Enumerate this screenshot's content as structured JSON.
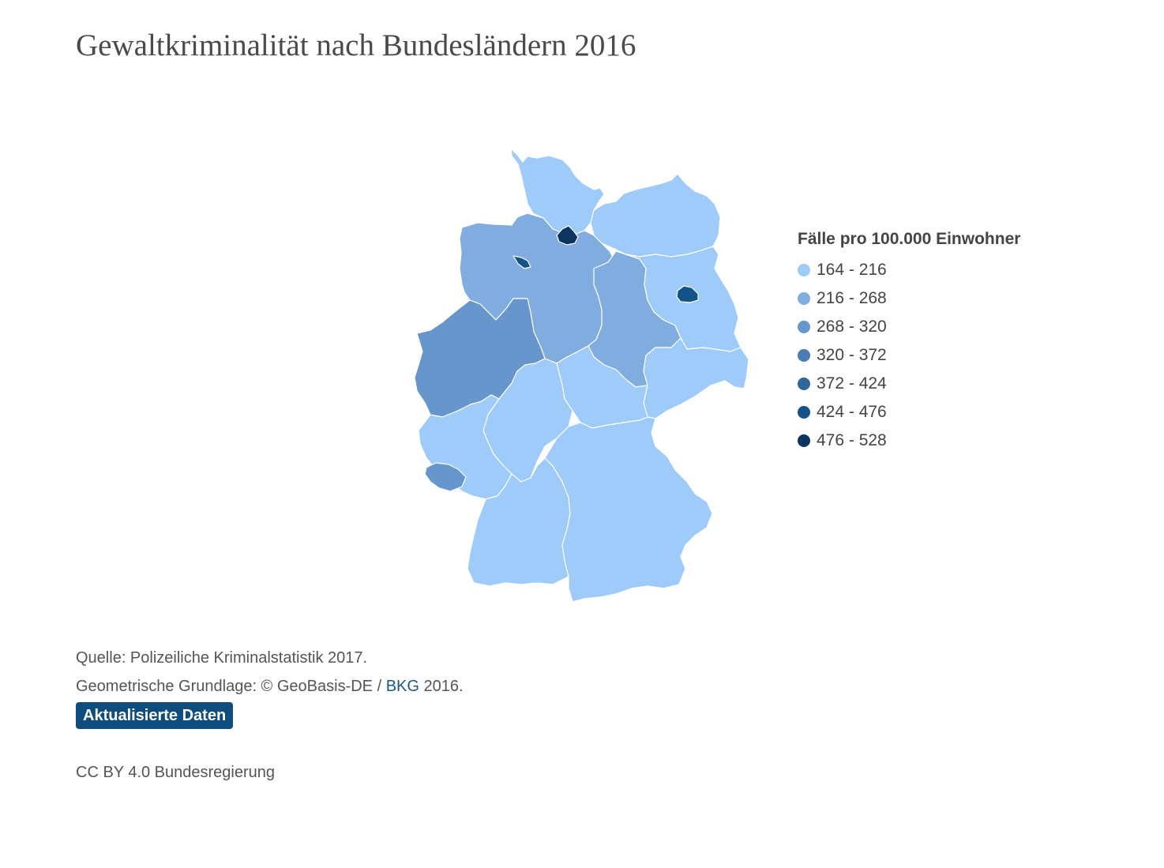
{
  "title": "Gewaltkriminalität nach Bundesländern 2016",
  "map": {
    "legend": {
      "title": "Fälle pro 100.000 Einwohner",
      "classes": [
        {
          "label": "164 - 216",
          "color": "#9ecbfa"
        },
        {
          "label": "216 - 268",
          "color": "#80acdf"
        },
        {
          "label": "268 - 320",
          "color": "#6796cc"
        },
        {
          "label": "320 - 372",
          "color": "#4d7bb4"
        },
        {
          "label": "372 - 424",
          "color": "#2f669b"
        },
        {
          "label": "424 - 476",
          "color": "#12548a"
        },
        {
          "label": "476 - 528",
          "color": "#0a3561"
        }
      ]
    },
    "states": [
      {
        "name": "Schleswig-Holstein",
        "class": 0
      },
      {
        "name": "Hamburg",
        "class": 6
      },
      {
        "name": "Niedersachsen",
        "class": 1
      },
      {
        "name": "Bremen",
        "class": 5
      },
      {
        "name": "Mecklenburg-Vorpommern",
        "class": 0
      },
      {
        "name": "Brandenburg",
        "class": 0
      },
      {
        "name": "Berlin",
        "class": 5
      },
      {
        "name": "Sachsen-Anhalt",
        "class": 1
      },
      {
        "name": "Nordrhein-Westfalen",
        "class": 2
      },
      {
        "name": "Hessen",
        "class": 0
      },
      {
        "name": "Thüringen",
        "class": 0
      },
      {
        "name": "Sachsen",
        "class": 0
      },
      {
        "name": "Rheinland-Pfalz",
        "class": 0
      },
      {
        "name": "Saarland",
        "class": 2
      },
      {
        "name": "Bayern",
        "class": 0
      },
      {
        "name": "Baden-Württemberg",
        "class": 0
      }
    ]
  },
  "footer": {
    "source": "Quelle: Polizeiliche Kriminalstatistik 2017.",
    "geo_prefix": "Geometrische Grundlage: © GeoBasis-DE / ",
    "geo_link": "BKG",
    "geo_suffix": " 2016.",
    "button_label": "Aktualisierte Daten",
    "license": "CC BY 4.0 Bundesregierung"
  }
}
